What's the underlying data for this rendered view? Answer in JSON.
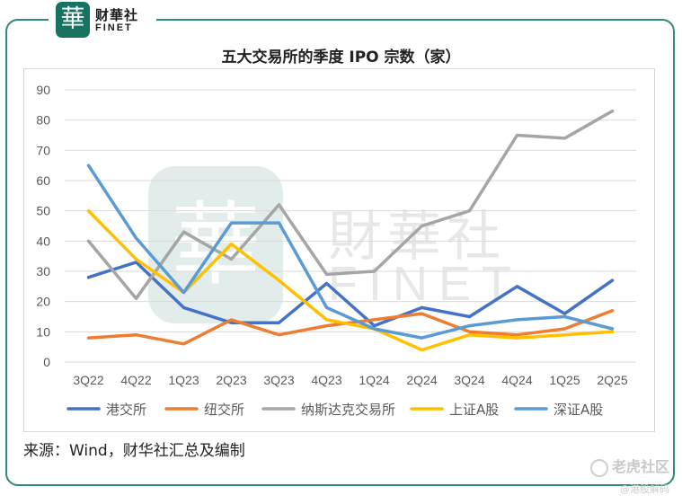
{
  "brand": {
    "seal_char": "華",
    "name_cn": "财華社",
    "name_en": "FINET"
  },
  "watermark": {
    "seal_char": "華",
    "name_cn": "財華社",
    "name_en": "FINET"
  },
  "source_note": "来源：Wind，财华社汇总及编制",
  "footer": {
    "community": "老虎社区",
    "handle": "@港股解码"
  },
  "colors": {
    "港交所": "#4472c4",
    "纽交所": "#ed7d31",
    "纳斯达克交易所": "#a5a5a5",
    "上证A股": "#ffc000",
    "深证A股": "#5b9bd5",
    "grid": "#d9d9d9",
    "frame": "#2f8a7a"
  },
  "chart_data": {
    "type": "line",
    "title": "五大交易所的季度 IPO 宗数（家）",
    "categories": [
      "3Q22",
      "4Q22",
      "1Q23",
      "2Q23",
      "3Q23",
      "4Q23",
      "1Q24",
      "2Q24",
      "3Q24",
      "4Q24",
      "1Q25",
      "2Q25"
    ],
    "ylim": [
      0,
      90
    ],
    "yticks": [
      0,
      10,
      20,
      30,
      40,
      50,
      60,
      70,
      80,
      90
    ],
    "grid": true,
    "legend_position": "bottom",
    "series": [
      {
        "name": "港交所",
        "values": [
          28,
          33,
          18,
          13,
          13,
          26,
          12,
          18,
          15,
          25,
          16,
          27
        ]
      },
      {
        "name": "纽交所",
        "values": [
          8,
          9,
          6,
          14,
          9,
          12,
          14,
          16,
          10,
          9,
          11,
          17
        ]
      },
      {
        "name": "纳斯达克交易所",
        "values": [
          40,
          21,
          43,
          34,
          52,
          29,
          30,
          45,
          50,
          75,
          74,
          83
        ]
      },
      {
        "name": "上证A股",
        "values": [
          50,
          34,
          23,
          39,
          27,
          14,
          11,
          4,
          9,
          8,
          9,
          10
        ]
      },
      {
        "name": "深证A股",
        "values": [
          65,
          41,
          23,
          46,
          46,
          18,
          11,
          8,
          12,
          14,
          15,
          11
        ]
      }
    ]
  }
}
